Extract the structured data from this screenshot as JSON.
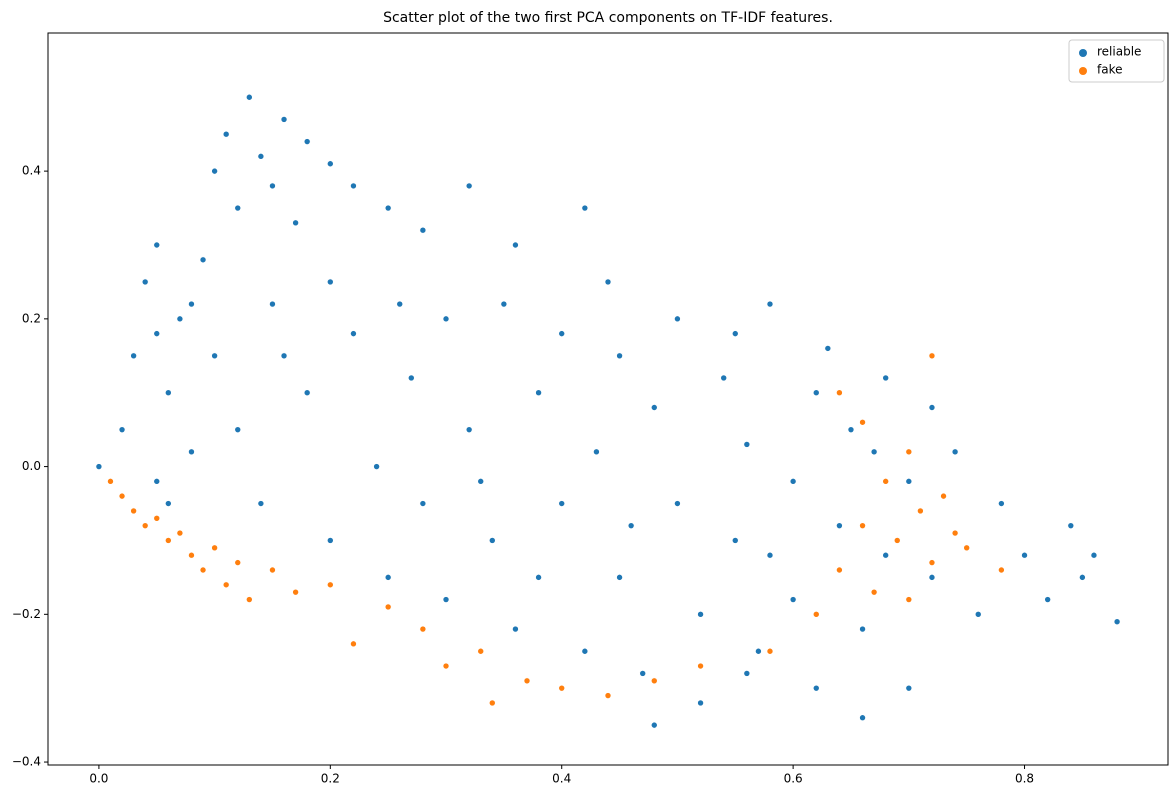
{
  "chart_data": {
    "type": "scatter",
    "title": "Scatter plot of the two first PCA components on TF-IDF features.",
    "xlim": [
      -0.044,
      0.924
    ],
    "ylim": [
      -0.404,
      0.587
    ],
    "xticks": [
      {
        "value": 0,
        "label": "0.0"
      },
      0.2,
      0.4,
      0.6,
      0.8
    ],
    "yticks": [
      {
        "value": -0.4,
        "label": "−0.4"
      },
      {
        "value": -0.2,
        "label": "−0.2"
      },
      {
        "value": 0,
        "label": "0.0"
      },
      0.2,
      0.4
    ],
    "legend": "upper right",
    "series": [
      {
        "name": "reliable",
        "color": "#1f77b4",
        "x": [
          0.0,
          0.02,
          0.03,
          0.04,
          0.05,
          0.05,
          0.06,
          0.07,
          0.08,
          0.09,
          0.1,
          0.11,
          0.12,
          0.13,
          0.14,
          0.15,
          0.16,
          0.17,
          0.18,
          0.2,
          0.22,
          0.25,
          0.28,
          0.32,
          0.36,
          0.42,
          0.1,
          0.12,
          0.14,
          0.15,
          0.18,
          0.2,
          0.22,
          0.24,
          0.25,
          0.27,
          0.28,
          0.3,
          0.3,
          0.32,
          0.34,
          0.35,
          0.36,
          0.38,
          0.4,
          0.4,
          0.42,
          0.43,
          0.45,
          0.45,
          0.47,
          0.48,
          0.5,
          0.5,
          0.52,
          0.52,
          0.54,
          0.55,
          0.56,
          0.57,
          0.58,
          0.6,
          0.6,
          0.62,
          0.62,
          0.64,
          0.65,
          0.66,
          0.68,
          0.7,
          0.72,
          0.74,
          0.76,
          0.78,
          0.8,
          0.82,
          0.84,
          0.85,
          0.86,
          0.88,
          0.7,
          0.66,
          0.56,
          0.48,
          0.05,
          0.06,
          0.08,
          0.2,
          0.26,
          0.33,
          0.44,
          0.55,
          0.63,
          0.68,
          0.72,
          0.16,
          0.38,
          0.46,
          0.58,
          0.67
        ],
        "y": [
          0.0,
          0.05,
          0.15,
          0.25,
          0.3,
          -0.02,
          0.1,
          0.2,
          0.02,
          0.28,
          0.4,
          0.45,
          0.35,
          0.5,
          0.42,
          0.38,
          0.47,
          0.33,
          0.44,
          0.41,
          0.38,
          0.35,
          0.32,
          0.38,
          0.3,
          0.35,
          0.15,
          0.05,
          -0.05,
          0.22,
          0.1,
          -0.1,
          0.18,
          0.0,
          -0.15,
          0.12,
          -0.05,
          0.2,
          -0.18,
          0.05,
          -0.1,
          0.22,
          -0.22,
          0.1,
          -0.05,
          0.18,
          -0.25,
          0.02,
          0.15,
          -0.15,
          -0.28,
          0.08,
          -0.05,
          0.2,
          -0.2,
          -0.32,
          0.12,
          -0.1,
          0.03,
          -0.25,
          0.22,
          -0.02,
          -0.18,
          0.1,
          -0.3,
          -0.08,
          0.05,
          -0.22,
          -0.12,
          -0.02,
          -0.15,
          0.02,
          -0.2,
          -0.05,
          -0.12,
          -0.18,
          -0.08,
          -0.15,
          -0.12,
          -0.21,
          -0.3,
          -0.34,
          -0.28,
          -0.35,
          0.18,
          -0.05,
          0.22,
          0.25,
          0.22,
          -0.02,
          0.25,
          0.18,
          0.16,
          0.12,
          0.08,
          0.15,
          -0.15,
          -0.08,
          -0.12,
          0.02
        ]
      },
      {
        "name": "fake",
        "color": "#ff7f0e",
        "x": [
          0.01,
          0.02,
          0.03,
          0.04,
          0.05,
          0.06,
          0.07,
          0.08,
          0.09,
          0.1,
          0.11,
          0.12,
          0.13,
          0.15,
          0.17,
          0.2,
          0.22,
          0.25,
          0.28,
          0.3,
          0.33,
          0.34,
          0.37,
          0.4,
          0.44,
          0.48,
          0.52,
          0.58,
          0.62,
          0.64,
          0.66,
          0.67,
          0.68,
          0.69,
          0.7,
          0.71,
          0.72,
          0.72,
          0.73,
          0.74,
          0.75,
          0.7,
          0.66,
          0.64,
          0.78
        ],
        "y": [
          -0.02,
          -0.04,
          -0.06,
          -0.08,
          -0.07,
          -0.1,
          -0.09,
          -0.12,
          -0.14,
          -0.11,
          -0.16,
          -0.13,
          -0.18,
          -0.14,
          -0.17,
          -0.16,
          -0.24,
          -0.19,
          -0.22,
          -0.27,
          -0.25,
          -0.32,
          -0.29,
          -0.3,
          -0.31,
          -0.29,
          -0.27,
          -0.25,
          -0.2,
          -0.14,
          -0.08,
          -0.17,
          -0.02,
          -0.1,
          0.02,
          -0.06,
          -0.13,
          0.15,
          -0.04,
          -0.09,
          -0.11,
          -0.18,
          0.06,
          0.1,
          -0.14
        ]
      }
    ]
  }
}
